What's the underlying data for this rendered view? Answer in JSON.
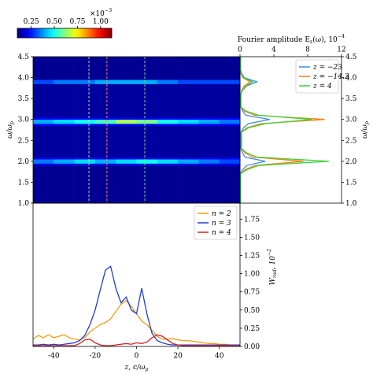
{
  "chart_data": [
    {
      "type": "colorbar",
      "label": "×10^{−3}",
      "colormap": "jet",
      "clim": [
        0.1,
        1.12
      ],
      "ticks": [
        {
          "value": 0.25,
          "label": "0.25"
        },
        {
          "value": 0.5,
          "label": "0.50"
        },
        {
          "value": 0.75,
          "label": "0.75"
        },
        {
          "value": 1.0,
          "label": "1.00"
        }
      ]
    },
    {
      "type": "heatmap",
      "ylabel": "ω/ω_p",
      "colormap": "jet",
      "clim": [
        0.1,
        1.12
      ],
      "x_edges": [
        -50,
        -40,
        -30,
        -20,
        -10,
        0,
        10,
        20,
        30,
        40,
        50
      ],
      "y_edges": [
        1.0,
        1.9,
        1.95,
        2.05,
        2.1,
        2.85,
        2.9,
        3.0,
        3.05,
        3.85,
        3.95,
        4.5
      ],
      "values": [
        [
          0.12,
          0.12,
          0.12,
          0.12,
          0.12,
          0.12,
          0.12,
          0.12,
          0.12,
          0.12
        ],
        [
          0.2,
          0.2,
          0.2,
          0.2,
          0.2,
          0.2,
          0.2,
          0.2,
          0.2,
          0.2
        ],
        [
          0.35,
          0.4,
          0.45,
          0.4,
          0.45,
          0.5,
          0.45,
          0.4,
          0.35,
          0.3
        ],
        [
          0.2,
          0.2,
          0.2,
          0.2,
          0.2,
          0.2,
          0.2,
          0.2,
          0.2,
          0.2
        ],
        [
          0.13,
          0.13,
          0.13,
          0.13,
          0.13,
          0.13,
          0.13,
          0.13,
          0.13,
          0.13
        ],
        [
          0.22,
          0.22,
          0.22,
          0.22,
          0.22,
          0.22,
          0.22,
          0.22,
          0.22,
          0.22
        ],
        [
          0.4,
          0.45,
          0.5,
          0.55,
          0.65,
          0.6,
          0.5,
          0.45,
          0.4,
          0.35
        ],
        [
          0.22,
          0.22,
          0.22,
          0.22,
          0.22,
          0.22,
          0.22,
          0.22,
          0.22,
          0.22
        ],
        [
          0.13,
          0.13,
          0.13,
          0.13,
          0.13,
          0.13,
          0.13,
          0.13,
          0.13,
          0.13
        ],
        [
          0.3,
          0.35,
          0.35,
          0.4,
          0.4,
          0.4,
          0.35,
          0.3,
          0.3,
          0.3
        ],
        [
          0.12,
          0.12,
          0.12,
          0.12,
          0.12,
          0.12,
          0.12,
          0.12,
          0.12,
          0.12
        ]
      ],
      "xlim": [
        -50,
        50
      ],
      "ylim": [
        1.0,
        4.5
      ],
      "yticks": [
        {
          "value": 1.0,
          "label": "1.0"
        },
        {
          "value": 1.5,
          "label": "1.5"
        },
        {
          "value": 2.0,
          "label": "2.0"
        },
        {
          "value": 2.5,
          "label": "2.5"
        },
        {
          "value": 3.0,
          "label": "3.0"
        },
        {
          "value": 3.5,
          "label": "3.5"
        },
        {
          "value": 4.0,
          "label": "4.0"
        },
        {
          "value": 4.5,
          "label": "4.5"
        }
      ],
      "vlines": [
        {
          "value": -23,
          "color": "#c8c890"
        },
        {
          "value": -14.3,
          "color": "#ff7f50"
        },
        {
          "value": 4,
          "color": "#7ad27a"
        }
      ]
    },
    {
      "type": "line",
      "orientation": "horizontal",
      "title": "Fourier amplitude E_z(ω), 10^{−4}",
      "ylabel": "ω/ω_p",
      "y": [
        1.0,
        1.1,
        1.2,
        1.3,
        1.4,
        1.5,
        1.6,
        1.7,
        1.8,
        1.9,
        2.0,
        2.1,
        2.2,
        2.3,
        2.4,
        2.5,
        2.6,
        2.7,
        2.8,
        2.9,
        3.0,
        3.1,
        3.2,
        3.3,
        3.4,
        3.5,
        3.6,
        3.7,
        3.8,
        3.9,
        4.0,
        4.1,
        4.2,
        4.3,
        4.4,
        4.5
      ],
      "series": [
        {
          "name": "z = −23",
          "color": "#3a8ee6",
          "values": [
            0.05,
            0.05,
            0.05,
            0.05,
            0.05,
            0.05,
            0.05,
            0.05,
            0.3,
            0.8,
            3.0,
            0.6,
            0.3,
            0.1,
            0.1,
            0.1,
            0.1,
            0.1,
            0.4,
            1.0,
            3.5,
            0.7,
            0.3,
            0.1,
            0.1,
            0.1,
            0.1,
            0.3,
            0.8,
            2.0,
            0.5,
            0.2,
            0.05,
            0.05,
            0.05,
            0.05
          ]
        },
        {
          "name": "z = −14.3",
          "color": "#ff7f0e",
          "values": [
            0.05,
            0.05,
            0.05,
            0.05,
            0.05,
            0.05,
            0.05,
            0.05,
            0.6,
            1.8,
            7.5,
            1.5,
            0.6,
            0.15,
            0.15,
            0.15,
            0.15,
            0.15,
            0.8,
            2.5,
            10,
            1.8,
            0.5,
            0.1,
            0.1,
            0.1,
            0.1,
            0.2,
            0.5,
            1.2,
            0.3,
            0.1,
            0.05,
            0.05,
            0.05,
            0.05
          ]
        },
        {
          "name": "z = 4",
          "color": "#3dd13d",
          "values": [
            0.05,
            0.05,
            0.05,
            0.05,
            0.05,
            0.05,
            0.05,
            0.05,
            0.8,
            2.2,
            10.5,
            2.0,
            0.8,
            0.2,
            0.2,
            0.2,
            0.2,
            0.2,
            1.0,
            3.0,
            8.5,
            2.2,
            0.7,
            0.1,
            0.1,
            0.1,
            0.1,
            0.3,
            0.7,
            1.5,
            0.4,
            0.15,
            0.05,
            0.05,
            0.05,
            0.05
          ]
        }
      ],
      "xlim": [
        0,
        12
      ],
      "xticks": [
        0,
        4,
        8,
        12
      ],
      "ylim": [
        1.0,
        4.5
      ],
      "yticks": [
        {
          "value": 1.0,
          "label": "1.0"
        },
        {
          "value": 1.5,
          "label": "1.5"
        },
        {
          "value": 2.0,
          "label": "2.0"
        },
        {
          "value": 2.5,
          "label": "2.5"
        },
        {
          "value": 3.0,
          "label": "3.0"
        },
        {
          "value": 3.5,
          "label": "3.5"
        },
        {
          "value": 4.0,
          "label": "4.0"
        },
        {
          "value": 4.5,
          "label": "4.5"
        }
      ],
      "legend": "upper right"
    },
    {
      "type": "line",
      "xlabel": "z, c/ω_p",
      "ylabel": "W_{rad}, 10^{−2}",
      "x": [
        -50,
        -47.5,
        -45,
        -42.5,
        -40,
        -37.5,
        -35,
        -32.5,
        -30,
        -27.5,
        -25,
        -22.5,
        -20,
        -17.5,
        -15,
        -12.5,
        -10,
        -7.5,
        -5,
        -2.5,
        0,
        2.5,
        5,
        7.5,
        10,
        12.5,
        15,
        17.5,
        20,
        22.5,
        25,
        27.5,
        30,
        32.5,
        35,
        37.5,
        40,
        42.5,
        45,
        47.5,
        50
      ],
      "series": [
        {
          "name": "n = 2",
          "color": "#f39c12",
          "values": [
            0.1,
            0.15,
            0.12,
            0.16,
            0.12,
            0.14,
            0.16,
            0.12,
            0.1,
            0.09,
            0.12,
            0.2,
            0.25,
            0.3,
            0.33,
            0.38,
            0.48,
            0.58,
            0.63,
            0.55,
            0.45,
            0.35,
            0.3,
            0.22,
            0.14,
            0.1,
            0.1,
            0.11,
            0.09,
            0.08,
            0.08,
            0.07,
            0.06,
            0.05,
            0.04,
            0.04,
            0.03,
            0.03,
            0.02,
            0.02,
            0.02
          ]
        },
        {
          "name": "n = 3",
          "color": "#1f3fd0",
          "values": [
            0.02,
            0.02,
            0.03,
            0.02,
            0.03,
            0.02,
            0.03,
            0.04,
            0.05,
            0.08,
            0.15,
            0.3,
            0.5,
            0.78,
            1.05,
            1.1,
            0.8,
            0.6,
            0.68,
            0.5,
            0.45,
            0.8,
            0.45,
            0.18,
            0.08,
            0.05,
            0.03,
            0.02,
            0.02,
            0.02,
            0.02,
            0.02,
            0.02,
            0.02,
            0.02,
            0.02,
            0.02,
            0.02,
            0.02,
            0.02,
            0.02
          ]
        },
        {
          "name": "n = 4",
          "color": "#d62020",
          "values": [
            0.01,
            0.01,
            0.01,
            0.01,
            0.01,
            0.01,
            0.01,
            0.01,
            0.01,
            0.04,
            0.09,
            0.1,
            0.05,
            0.02,
            0.01,
            0.01,
            0.02,
            0.03,
            0.04,
            0.03,
            0.05,
            0.04,
            0.06,
            0.12,
            0.16,
            0.14,
            0.09,
            0.04,
            0.02,
            0.01,
            0.01,
            0.01,
            0.01,
            0.01,
            0.01,
            0.01,
            0.01,
            0.01,
            0.01,
            0.01,
            0.01
          ]
        }
      ],
      "xlim": [
        -50,
        50
      ],
      "xticks": [
        -40,
        -20,
        0,
        20,
        40
      ],
      "ylim": [
        0,
        1.97
      ],
      "yticks": [
        {
          "value": 0,
          "label": "0.00"
        },
        {
          "value": 0.25,
          "label": "0.25"
        },
        {
          "value": 0.5,
          "label": "0.50"
        },
        {
          "value": 0.75,
          "label": "0.75"
        },
        {
          "value": 1.0,
          "label": "1.00"
        },
        {
          "value": 1.25,
          "label": "1.25"
        },
        {
          "value": 1.5,
          "label": "1.50"
        },
        {
          "value": 1.75,
          "label": "1.75"
        }
      ],
      "legend": "upper right"
    }
  ]
}
